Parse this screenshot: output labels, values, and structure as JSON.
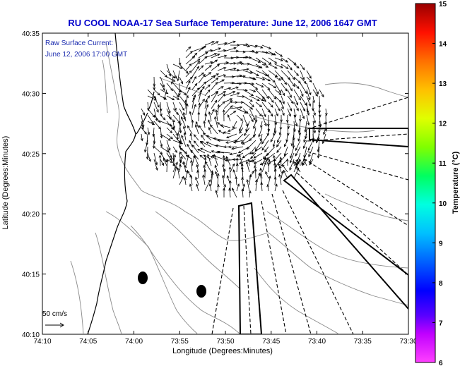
{
  "title": "RU COOL  NOAA-17  Sea Surface Temperature:  June 12, 2006 1647 GMT",
  "annotation": {
    "line1": "Raw Surface Current:",
    "line2": "June 12, 2006 17:00 GMT"
  },
  "scale_label": "50 cm/s",
  "axes": {
    "xlabel": "Longitude (Degrees:Minutes)",
    "ylabel": "Latitude (Degrees:Minutes)",
    "x_ticks": [
      "74:10",
      "74:05",
      "74:00",
      "73:55",
      "73:50",
      "73:45",
      "73:40",
      "73:35",
      "73:30"
    ],
    "y_ticks": [
      "40:35",
      "40:30",
      "40:25",
      "40:20",
      "40:15",
      "40:10"
    ]
  },
  "colorbar": {
    "label": "Temperature (°C)",
    "ticks": [
      "15",
      "14",
      "13",
      "12",
      "11",
      "10",
      "9",
      "8",
      "7",
      "6"
    ],
    "min": 6,
    "max": 15
  },
  "colors": {
    "title": "#0000cc",
    "annotation": "#1f2fb0"
  }
}
